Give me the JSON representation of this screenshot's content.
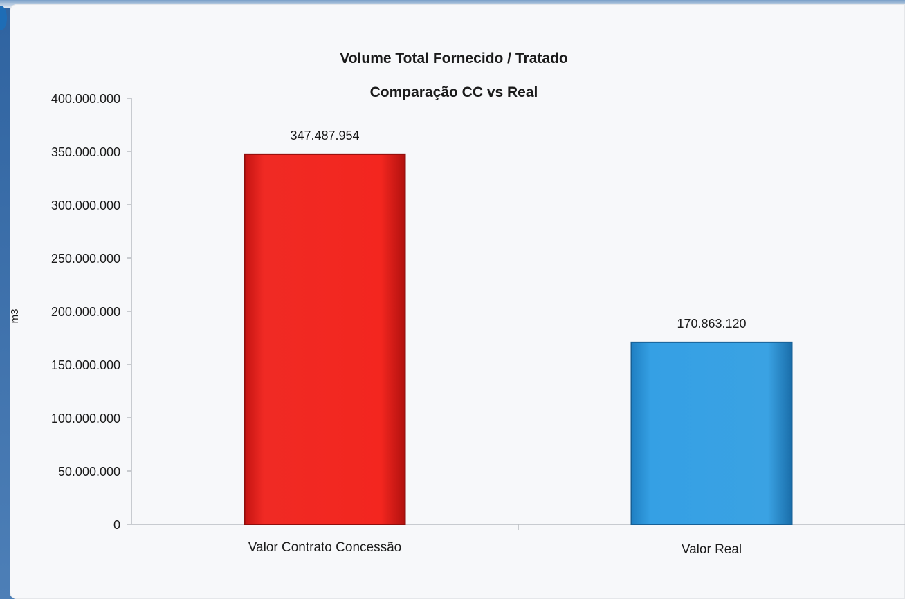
{
  "colors": {
    "panel_bg": "#f7f8fa",
    "axis": "#b9bcc1",
    "bar_red": "#e8231f",
    "bar_blue": "#2f97dc"
  },
  "chart_data": {
    "type": "bar",
    "title": "Volume Total Fornecido / Tratado",
    "subtitle": "Comparação CC vs Real",
    "xlabel": "",
    "ylabel": "m3",
    "ylim": [
      0,
      400000000
    ],
    "yticks": [
      0,
      50000000,
      100000000,
      150000000,
      200000000,
      250000000,
      300000000,
      350000000,
      400000000
    ],
    "ytick_labels": [
      "0",
      "50.000.000",
      "100.000.000",
      "150.000.000",
      "200.000.000",
      "250.000.000",
      "300.000.000",
      "350.000.000",
      "400.000.000"
    ],
    "categories": [
      "Valor Contrato Concessão",
      "Valor Real"
    ],
    "values": [
      347487954,
      170863120
    ],
    "value_labels": [
      "347.487.954",
      "170.863.120"
    ],
    "bar_colors": [
      "#e8231f",
      "#2f97dc"
    ],
    "grid": false,
    "legend": "none"
  }
}
